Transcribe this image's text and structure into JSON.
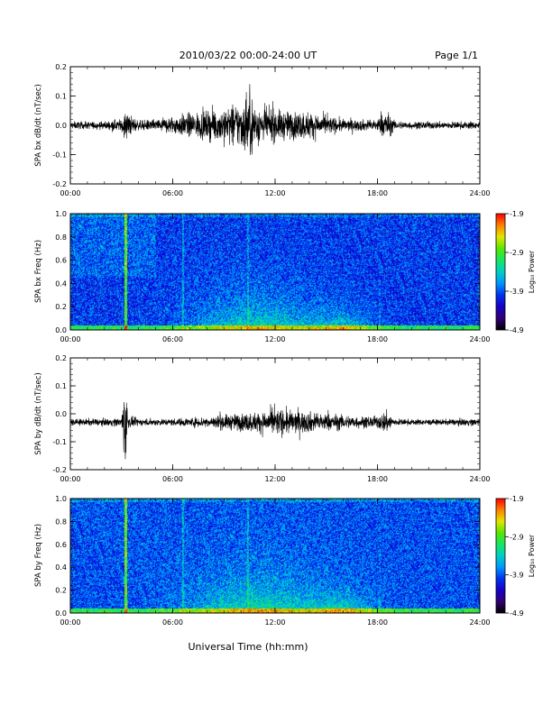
{
  "header": {
    "title": "2010/03/22  00:00-24:00 UT",
    "page_label": "Page 1/1"
  },
  "footer": {
    "xlabel": "Universal Time (hh:mm)"
  },
  "colorbar": {
    "label": "Log₁₀ Power",
    "ticks": [
      "-1.9",
      "-2.9",
      "-3.9",
      "-4.9"
    ],
    "range": [
      -4.9,
      -1.9
    ]
  },
  "colors": {
    "trace": "#000000",
    "spec_low": "#000000",
    "spec_mid": "#00c0ff",
    "spec_high": "#ff0000"
  },
  "chart_data": [
    {
      "type": "line",
      "ylabel": "SPA bx dB/dt (nT/sec)",
      "x_ticks": [
        "00:00",
        "06:00",
        "12:00",
        "18:00",
        "24:00"
      ],
      "xlim": [
        0,
        24
      ],
      "ylim": [
        -0.2,
        0.2
      ],
      "y_ticks": [
        "0.2",
        "0.1",
        "0.0",
        "-0.1",
        "-0.2"
      ],
      "baseline": 0.0,
      "series": [
        {
          "x": [
            0,
            1,
            2,
            3,
            3.2,
            4,
            5,
            6,
            7,
            8,
            9,
            10,
            10.5,
            11,
            12,
            13,
            14,
            15,
            16,
            17,
            18,
            18.5,
            19,
            20,
            21,
            22,
            23,
            24
          ],
          "amplitude": [
            0.012,
            0.012,
            0.013,
            0.02,
            0.045,
            0.015,
            0.02,
            0.03,
            0.04,
            0.045,
            0.06,
            0.075,
            0.11,
            0.06,
            0.05,
            0.045,
            0.045,
            0.03,
            0.02,
            0.018,
            0.02,
            0.05,
            0.015,
            0.012,
            0.012,
            0.012,
            0.012,
            0.012
          ]
        }
      ]
    },
    {
      "type": "heatmap",
      "ylabel": "SPA bx Freq (Hz)",
      "x_ticks": [
        "00:00",
        "06:00",
        "12:00",
        "18:00",
        "24:00"
      ],
      "xlim": [
        0,
        24
      ],
      "ylim": [
        0,
        1.0
      ],
      "y_ticks": [
        "1.0",
        "0.8",
        "0.6",
        "0.4",
        "0.2",
        "0.0"
      ],
      "zlim": [
        -4.9,
        -1.9
      ]
    },
    {
      "type": "line",
      "ylabel": "SPA by dB/dt (nT/sec)",
      "x_ticks": [
        "00:00",
        "06:00",
        "12:00",
        "18:00",
        "24:00"
      ],
      "xlim": [
        0,
        24
      ],
      "ylim": [
        -0.2,
        0.2
      ],
      "y_ticks": [
        "0.2",
        "0.1",
        "0.0",
        "-0.1",
        "-0.2"
      ],
      "baseline": -0.03,
      "series": [
        {
          "x": [
            0,
            1,
            2,
            3,
            3.2,
            3.4,
            4,
            5,
            6,
            7,
            8,
            9,
            10,
            11,
            12,
            13,
            14,
            15,
            16,
            17,
            18,
            18.5,
            19,
            20,
            21,
            22,
            23,
            24
          ],
          "amplitude": [
            0.01,
            0.012,
            0.012,
            0.015,
            0.16,
            0.02,
            0.012,
            0.012,
            0.012,
            0.015,
            0.02,
            0.025,
            0.03,
            0.035,
            0.045,
            0.04,
            0.035,
            0.03,
            0.025,
            0.02,
            0.02,
            0.04,
            0.012,
            0.01,
            0.01,
            0.01,
            0.012,
            0.012
          ]
        }
      ]
    },
    {
      "type": "heatmap",
      "ylabel": "SPA by Freq (Hz)",
      "x_ticks": [
        "00:00",
        "06:00",
        "12:00",
        "18:00",
        "24:00"
      ],
      "xlim": [
        0,
        24
      ],
      "ylim": [
        0,
        1.0
      ],
      "y_ticks": [
        "1.0",
        "0.8",
        "0.6",
        "0.4",
        "0.2",
        "0.0"
      ],
      "zlim": [
        -4.9,
        -1.9
      ]
    }
  ]
}
